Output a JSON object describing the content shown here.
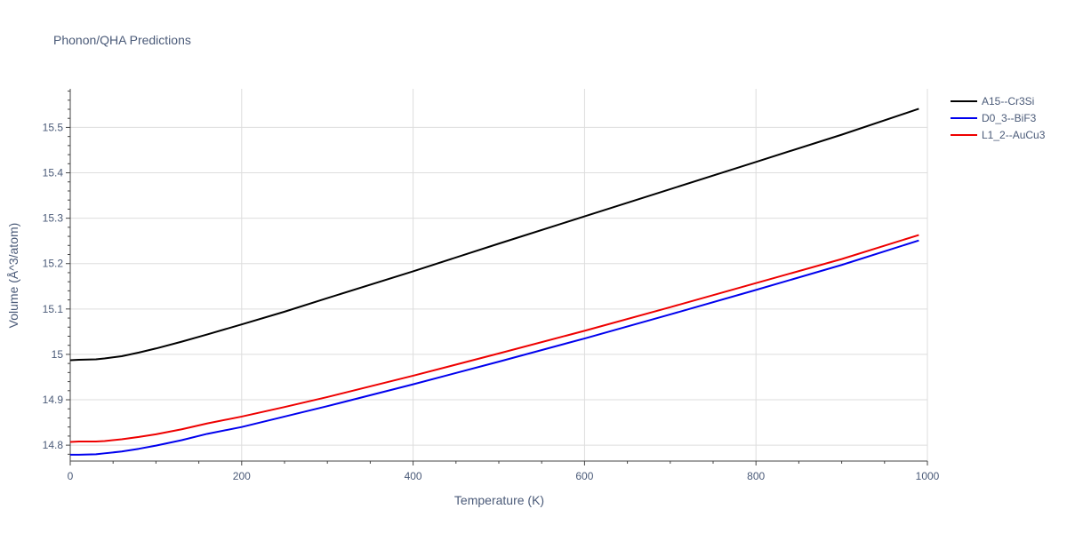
{
  "chart_data": {
    "type": "line",
    "title": "Phonon/QHA Predictions",
    "xlabel": "Temperature (K)",
    "ylabel": "Volume (Å^3/atom)",
    "xlim": [
      0,
      1000
    ],
    "ylim": [
      14.765,
      15.585
    ],
    "x_ticks": [
      0,
      200,
      400,
      600,
      800,
      1000
    ],
    "y_ticks": [
      14.8,
      14.9,
      15,
      15.1,
      15.2,
      15.3,
      15.4,
      15.5
    ],
    "y_tick_labels": [
      "14.8",
      "14.9",
      "15",
      "15.1",
      "15.2",
      "15.3",
      "15.4",
      "15.5"
    ],
    "grid": true,
    "legend_position": "top-right",
    "series": [
      {
        "name": "A15--Cr3Si",
        "color": "#000000",
        "x": [
          0,
          10,
          30,
          40,
          60,
          80,
          100,
          130,
          160,
          200,
          250,
          300,
          400,
          500,
          600,
          700,
          800,
          900,
          990
        ],
        "y": [
          14.987,
          14.988,
          14.989,
          14.991,
          14.996,
          15.004,
          15.013,
          15.028,
          15.044,
          15.066,
          15.094,
          15.124,
          15.183,
          15.244,
          15.304,
          15.364,
          15.424,
          15.484,
          15.541
        ]
      },
      {
        "name": "D0_3--BiF3",
        "color": "#0000ee",
        "x": [
          0,
          10,
          30,
          40,
          60,
          80,
          100,
          130,
          160,
          200,
          250,
          300,
          400,
          500,
          600,
          700,
          800,
          900,
          990
        ],
        "y": [
          14.779,
          14.779,
          14.78,
          14.782,
          14.786,
          14.792,
          14.799,
          14.811,
          14.825,
          14.84,
          14.863,
          14.886,
          14.934,
          14.984,
          15.035,
          15.088,
          15.142,
          15.197,
          15.251
        ]
      },
      {
        "name": "L1_2--AuCu3",
        "color": "#ee0000",
        "x": [
          0,
          10,
          30,
          40,
          60,
          80,
          100,
          130,
          160,
          200,
          250,
          300,
          400,
          500,
          600,
          700,
          800,
          900,
          990
        ],
        "y": [
          14.807,
          14.808,
          14.808,
          14.809,
          14.813,
          14.818,
          14.824,
          14.835,
          14.848,
          14.863,
          14.884,
          14.906,
          14.953,
          15.002,
          15.052,
          15.104,
          15.157,
          15.21,
          15.263
        ]
      }
    ]
  }
}
